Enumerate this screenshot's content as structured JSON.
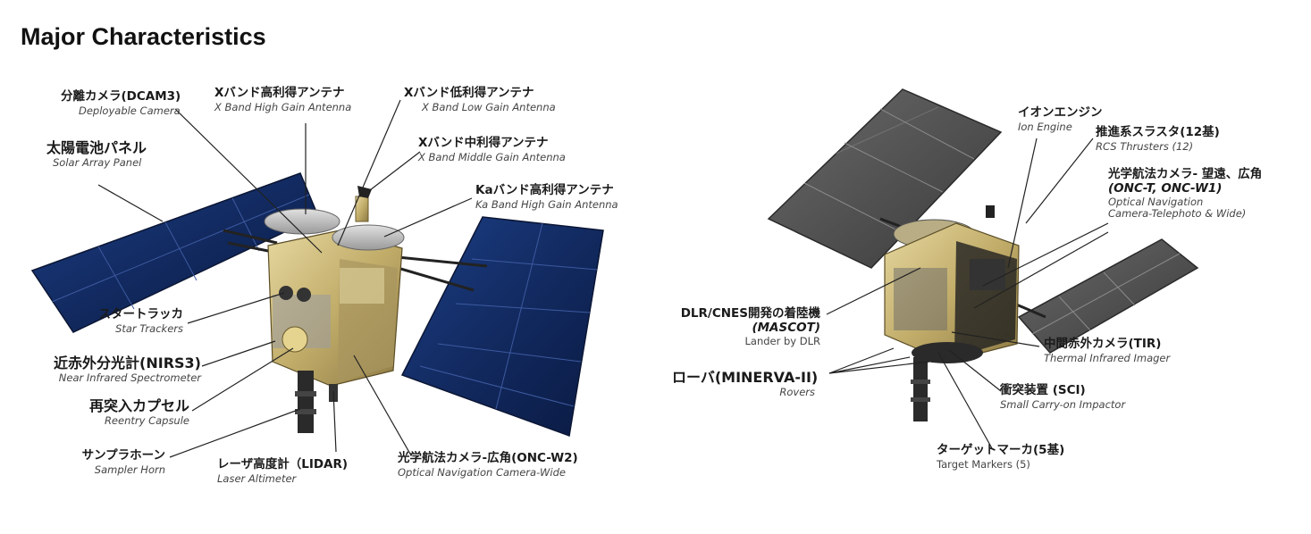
{
  "heading": "Major Characteristics",
  "left": {
    "labels": [
      {
        "id": "dcam3",
        "jp": "分離カメラ(DCAM3)",
        "en": "Deployable Camera"
      },
      {
        "id": "xhga",
        "jp": "Xバンド高利得アンテナ",
        "en": "X Band High Gain Antenna"
      },
      {
        "id": "xlga",
        "jp": "Xバンド低利得アンテナ",
        "en": "X Band  Low Gain Antenna"
      },
      {
        "id": "xmga",
        "jp": "Xバンド中利得アンテナ",
        "en": "X Band Middle Gain Antenna"
      },
      {
        "id": "kahga",
        "jp": "Kaバンド高利得アンテナ",
        "en": "Ka Band   High Gain Antenna"
      },
      {
        "id": "solar",
        "jp": "太陽電池パネル",
        "en": "Solar Array Panel"
      },
      {
        "id": "star",
        "jp": "スタートラッカ",
        "en": "Star Trackers"
      },
      {
        "id": "nirs3",
        "jp": "近赤外分光計(NIRS3)",
        "en": "Near Infrared Spectrometer"
      },
      {
        "id": "capsule",
        "jp": "再突入カプセル",
        "en": "Reentry Capsule"
      },
      {
        "id": "horn",
        "jp": "サンプラホーン",
        "en": "Sampler Horn"
      },
      {
        "id": "lidar",
        "jp": "レーザ高度計（LIDAR)",
        "en": "Laser Altimeter"
      },
      {
        "id": "oncw2",
        "jp": "光学航法カメラ-広角(ONC-W2)",
        "en": "Optical Navigation Camera-Wide"
      }
    ]
  },
  "right": {
    "labels": [
      {
        "id": "ion",
        "jp": "イオンエンジン",
        "en": "Ion Engine"
      },
      {
        "id": "rcs",
        "jp": "推進系スラスタ(12基)",
        "en": "RCS Thrusters (12)"
      },
      {
        "id": "onc",
        "jp": "光学航法カメラ- 望遠、広角",
        "jp2": "(ONC-T, ONC-W1)",
        "en": "Optical Navigation",
        "en2": "Camera-Telephoto & Wide)"
      },
      {
        "id": "mascot",
        "jp": "DLR/CNES開発の着陸機",
        "jp2": "(MASCOT)",
        "en": "Lander by DLR"
      },
      {
        "id": "tir",
        "jp": "中間赤外カメラ(TIR)",
        "en": "Thermal Infrared Imager"
      },
      {
        "id": "rovers",
        "jp": "ローバ(MINERVA-II)",
        "en": "Rovers"
      },
      {
        "id": "sci",
        "jp": "衝突装置 (SCI)",
        "en": "Small Carry-on Impactor"
      },
      {
        "id": "markers",
        "jp": "ターゲットマーカ(5基)",
        "en": "Target Markers (5)"
      }
    ]
  }
}
